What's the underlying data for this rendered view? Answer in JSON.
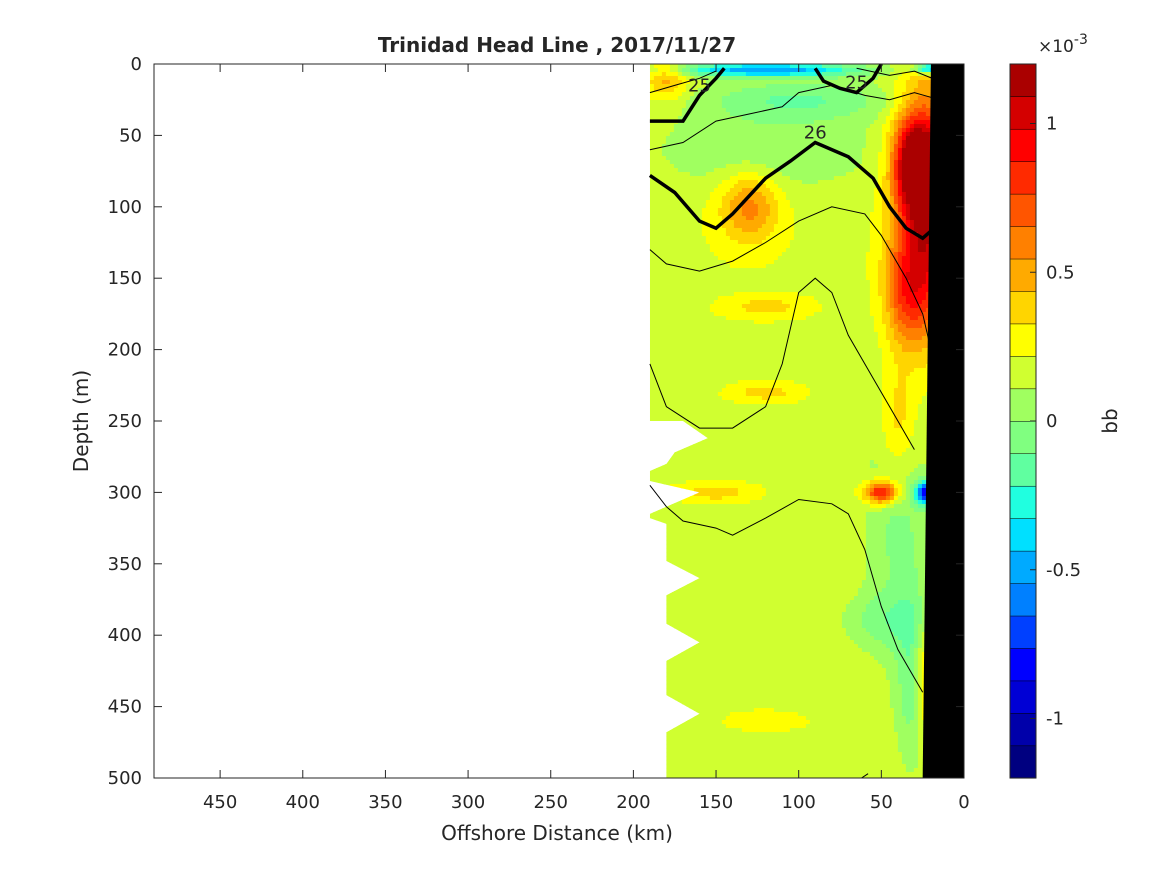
{
  "chart_data": {
    "type": "heatmap",
    "title": "Trinidad Head Line , 2017/11/27",
    "xlabel": "Offshore Distance (km)",
    "ylabel": "Depth (m)",
    "x_reversed": true,
    "y_reversed": true,
    "xlim": [
      0,
      490
    ],
    "ylim": [
      0,
      500
    ],
    "xticks": [
      450,
      400,
      350,
      300,
      250,
      200,
      150,
      100,
      50,
      0
    ],
    "yticks": [
      0,
      50,
      100,
      150,
      200,
      250,
      300,
      350,
      400,
      450,
      500
    ],
    "colorbar": {
      "label": "bb",
      "multiplier": "×10",
      "exponent": "-3",
      "range": [
        -0.0012,
        0.0012
      ],
      "ticks": [
        {
          "value": 0.001,
          "label": "1"
        },
        {
          "value": 0.0005,
          "label": "0.5"
        },
        {
          "value": 0,
          "label": "0"
        },
        {
          "value": -0.0005,
          "label": "-0.5"
        },
        {
          "value": -0.001,
          "label": "-1"
        }
      ]
    },
    "field": {
      "background_value": 0.0002,
      "x_extent_km": [
        0,
        190
      ],
      "blobs": [
        {
          "x": 22,
          "y": 100,
          "rx": 18,
          "ry": 80,
          "value": 0.0011
        },
        {
          "x": 30,
          "y": 70,
          "rx": 12,
          "ry": 30,
          "value": 0.00115
        },
        {
          "x": 35,
          "y": 160,
          "rx": 14,
          "ry": 40,
          "value": 0.0007
        },
        {
          "x": 40,
          "y": 250,
          "rx": 12,
          "ry": 45,
          "value": 0.0005
        },
        {
          "x": 130,
          "y": 100,
          "rx": 18,
          "ry": 25,
          "value": 0.0006
        },
        {
          "x": 180,
          "y": 10,
          "rx": 12,
          "ry": 15,
          "value": 0.0005
        },
        {
          "x": 120,
          "y": 170,
          "rx": 22,
          "ry": 7,
          "value": 0.0004
        },
        {
          "x": 120,
          "y": 230,
          "rx": 18,
          "ry": 6,
          "value": 0.0004
        },
        {
          "x": 150,
          "y": 300,
          "rx": 20,
          "ry": 6,
          "value": 0.0004
        },
        {
          "x": 50,
          "y": 300,
          "rx": 10,
          "ry": 8,
          "value": 0.001
        },
        {
          "x": 22,
          "y": 300,
          "rx": 7,
          "ry": 8,
          "value": -0.0009
        },
        {
          "x": 120,
          "y": 4,
          "rx": 60,
          "ry": 5,
          "value": -0.0005
        },
        {
          "x": 20,
          "y": 3,
          "rx": 10,
          "ry": 4,
          "value": -0.0006
        },
        {
          "x": 120,
          "y": 60,
          "rx": 70,
          "ry": 30,
          "value": 0.0
        },
        {
          "x": 100,
          "y": 25,
          "rx": 60,
          "ry": 15,
          "value": -0.0001
        },
        {
          "x": 40,
          "y": 300,
          "rx": 20,
          "ry": 120,
          "value": -5e-05
        },
        {
          "x": 30,
          "y": 430,
          "rx": 10,
          "ry": 60,
          "value": -0.0001
        },
        {
          "x": 25,
          "y": 430,
          "rx": 6,
          "ry": 40,
          "value": 0.0006
        },
        {
          "x": 50,
          "y": 390,
          "rx": 25,
          "ry": 20,
          "value": 0.0
        },
        {
          "x": 120,
          "y": 460,
          "rx": 20,
          "ry": 6,
          "value": 0.0003
        }
      ]
    },
    "bathymetry_profile": [
      [
        20,
        0
      ],
      [
        25,
        500
      ],
      [
        0,
        500
      ],
      [
        0,
        0
      ]
    ],
    "contours": {
      "thick": [
        {
          "label": "25",
          "points": [
            [
              190,
              40
            ],
            [
              170,
              40
            ],
            [
              160,
              22
            ],
            [
              150,
              10
            ],
            [
              145,
              3
            ]
          ]
        },
        {
          "label": "25",
          "points": [
            [
              90,
              3
            ],
            [
              85,
              12
            ],
            [
              75,
              17
            ],
            [
              65,
              20
            ],
            [
              55,
              10
            ],
            [
              50,
              0
            ]
          ]
        },
        {
          "label": "26",
          "points": [
            [
              190,
              78
            ],
            [
              175,
              90
            ],
            [
              160,
              110
            ],
            [
              150,
              115
            ],
            [
              140,
              105
            ],
            [
              120,
              80
            ],
            [
              105,
              68
            ],
            [
              90,
              55
            ],
            [
              70,
              65
            ],
            [
              55,
              80
            ],
            [
              45,
              100
            ],
            [
              35,
              115
            ],
            [
              25,
              122
            ],
            [
              18,
              115
            ]
          ]
        }
      ],
      "thin": [
        {
          "points": [
            [
              190,
              60
            ],
            [
              170,
              55
            ],
            [
              150,
              40
            ],
            [
              130,
              35
            ],
            [
              110,
              30
            ],
            [
              100,
              20
            ],
            [
              80,
              15
            ],
            [
              60,
              22
            ],
            [
              45,
              25
            ],
            [
              30,
              20
            ],
            [
              15,
              25
            ]
          ]
        },
        {
          "points": [
            [
              190,
              20
            ],
            [
              175,
              15
            ],
            [
              160,
              10
            ],
            [
              150,
              5
            ]
          ]
        },
        {
          "points": [
            [
              65,
              3
            ],
            [
              45,
              8
            ],
            [
              30,
              5
            ],
            [
              15,
              12
            ]
          ]
        },
        {
          "points": [
            [
              190,
              130
            ],
            [
              180,
              140
            ],
            [
              160,
              145
            ],
            [
              140,
              138
            ],
            [
              120,
              125
            ],
            [
              100,
              110
            ],
            [
              80,
              100
            ],
            [
              60,
              105
            ],
            [
              50,
              120
            ],
            [
              35,
              150
            ],
            [
              25,
              175
            ],
            [
              18,
              210
            ]
          ]
        },
        {
          "points": [
            [
              190,
              210
            ],
            [
              180,
              240
            ],
            [
              160,
              255
            ],
            [
              140,
              255
            ],
            [
              120,
              240
            ],
            [
              110,
              210
            ],
            [
              100,
              160
            ],
            [
              90,
              150
            ],
            [
              80,
              160
            ],
            [
              70,
              190
            ],
            [
              60,
              210
            ],
            [
              50,
              230
            ],
            [
              40,
              250
            ],
            [
              30,
              270
            ]
          ]
        },
        {
          "points": [
            [
              190,
              295
            ],
            [
              180,
              310
            ],
            [
              170,
              320
            ],
            [
              150,
              325
            ],
            [
              140,
              330
            ],
            [
              120,
              318
            ],
            [
              100,
              305
            ],
            [
              80,
              308
            ],
            [
              70,
              315
            ],
            [
              60,
              340
            ],
            [
              50,
              380
            ],
            [
              40,
              410
            ],
            [
              30,
              430
            ],
            [
              25,
              440
            ]
          ]
        },
        {
          "points": [
            [
              62,
              500
            ],
            [
              58,
              497
            ]
          ]
        }
      ]
    }
  }
}
